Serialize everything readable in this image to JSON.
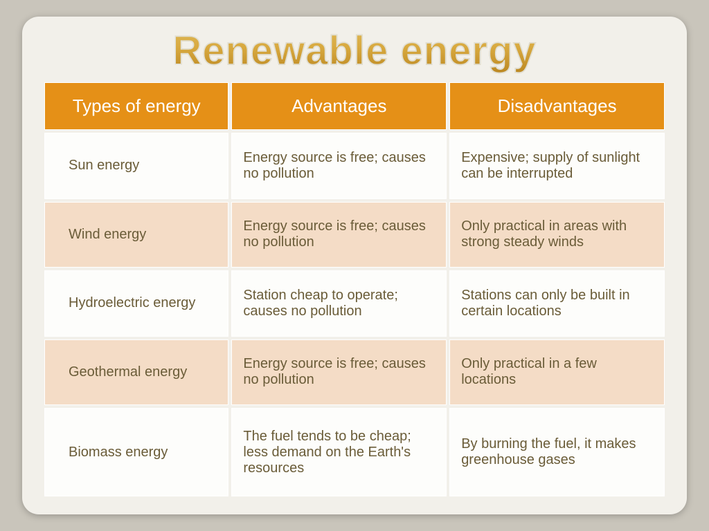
{
  "slide": {
    "title": "Renewable energy",
    "background": "#f2f0ea",
    "page_bg": "#c9c5bb",
    "title_gradient_top": "#dfba5a",
    "title_gradient_bottom": "#b47f1a"
  },
  "table": {
    "header_bg": "#e59017",
    "header_fg": "#ffffff",
    "row_odd_bg": "#fdfdfb",
    "row_even_bg": "#f4dcc6",
    "text_color": "#6a5c38",
    "columns": [
      {
        "key": "type",
        "label": "Types of energy"
      },
      {
        "key": "adv",
        "label": "Advantages"
      },
      {
        "key": "dis",
        "label": "Disadvantages"
      }
    ],
    "rows": [
      {
        "type": "Sun energy",
        "adv": "Energy source is free; causes no pollution",
        "dis": "Expensive; supply of sunlight can be interrupted"
      },
      {
        "type": "Wind energy",
        "adv": "Energy source is free; causes no pollution",
        "dis": "Only practical in areas with strong steady winds"
      },
      {
        "type": "Hydroelectric energy",
        "adv": "Station cheap to operate; causes no pollution",
        "dis": "Stations can only be built in certain locations"
      },
      {
        "type": "Geothermal energy",
        "adv": "Energy source is free; causes no pollution",
        "dis": "Only practical in a few locations"
      },
      {
        "type": "Biomass energy",
        "adv": "The fuel tends to be cheap; less demand on the Earth's resources",
        "dis": "By burning the fuel, it makes greenhouse gases"
      }
    ]
  }
}
